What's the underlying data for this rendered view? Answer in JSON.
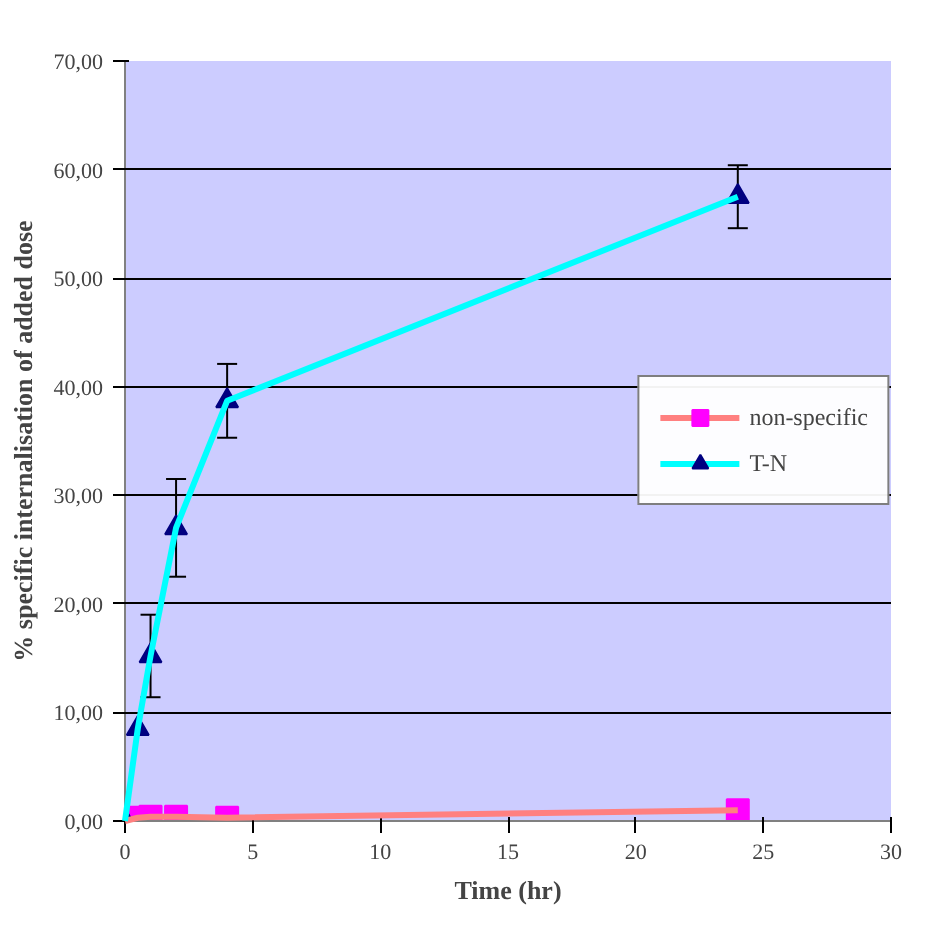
{
  "chart_data": {
    "type": "line",
    "xlabel": "Time (hr)",
    "ylabel": "% specific internalisation of added dose",
    "xlim": [
      0,
      30
    ],
    "ylim": [
      0,
      70
    ],
    "xticks": [
      0,
      5,
      10,
      15,
      20,
      25,
      30
    ],
    "yticks": [
      {
        "value": 0,
        "label": "0,00"
      },
      {
        "value": 10,
        "label": "10,00"
      },
      {
        "value": 20,
        "label": "20,00"
      },
      {
        "value": 30,
        "label": "30,00"
      },
      {
        "value": 40,
        "label": "40,00"
      },
      {
        "value": 50,
        "label": "50,00"
      },
      {
        "value": 60,
        "label": "60,00"
      },
      {
        "value": 70,
        "label": "70,00"
      }
    ],
    "grid": "y",
    "legend": "center right",
    "series": [
      {
        "name": "non-specific",
        "color": "#ff8080",
        "colors": [
          "#ff00ff",
          "#ff00ff",
          "#ff00ff",
          "#ff00ff",
          "#ff00ff",
          "#ff00ff"
        ],
        "marker": "square",
        "x": [
          0,
          0.5,
          1,
          2,
          4,
          24
        ],
        "values": [
          0,
          0.3,
          0.4,
          0.4,
          0.3,
          1.0
        ]
      },
      {
        "name": "T-N",
        "color": "#00ffff",
        "colors": [
          "#000080",
          "#000080",
          "#000080",
          "#000080",
          "#000080",
          "#000080"
        ],
        "marker": "triangle",
        "x": [
          0,
          0.5,
          1,
          2,
          4,
          24
        ],
        "values": [
          0,
          8.5,
          15.2,
          27,
          38.7,
          57.5
        ],
        "errors": [
          null,
          null,
          3.8,
          4.5,
          3.4,
          2.9
        ]
      }
    ]
  }
}
